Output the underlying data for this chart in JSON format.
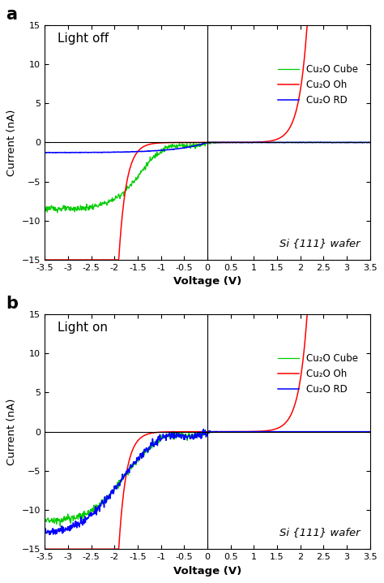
{
  "title_a": "Light off",
  "title_b": "Light on",
  "label_a": "a",
  "label_b": "b",
  "xlabel": "Voltage (V)",
  "ylabel": "Current (nA)",
  "xlim": [
    -3.5,
    3.5
  ],
  "ylim": [
    -15,
    15
  ],
  "xticks": [
    -3.5,
    -3.0,
    -2.5,
    -2.0,
    -1.5,
    -1.0,
    -0.5,
    0.0,
    0.5,
    1.0,
    1.5,
    2.0,
    2.5,
    3.0,
    3.5
  ],
  "yticks": [
    -15,
    -10,
    -5,
    0,
    5,
    10,
    15
  ],
  "wafer_text": "Si {111} wafer",
  "legend_labels": [
    "Cu₂O Cube",
    "Cu₂O Oh",
    "Cu₂O RD"
  ],
  "colors": {
    "cube": "#00cc00",
    "oh": "#ff0000",
    "rd": "#0000ff"
  },
  "background": "#ffffff",
  "vline_x": 0.0,
  "hline_y": 0.0
}
